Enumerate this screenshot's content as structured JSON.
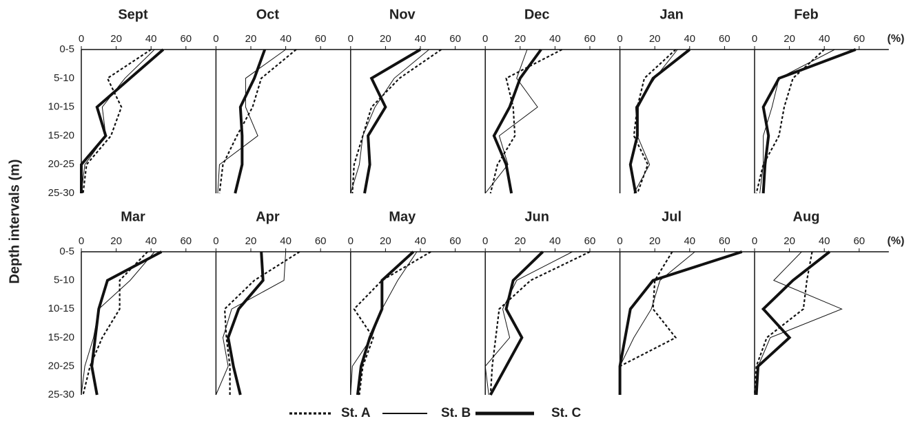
{
  "chart_data": {
    "type": "line",
    "y_label": "Depth intervals (m)",
    "x_unit": "(%)",
    "categories": [
      "0-5",
      "5-10",
      "10-15",
      "15-20",
      "20-25",
      "25-30"
    ],
    "xlim": [
      0,
      77
    ],
    "xticks": [
      0,
      20,
      40,
      60
    ],
    "series": [
      {
        "name": "St. A",
        "color": "#111111",
        "width": 2.2,
        "dash": "4 3"
      },
      {
        "name": "St. B",
        "color": "#111111",
        "width": 1,
        "dash": "none"
      },
      {
        "name": "St. C",
        "color": "#111111",
        "width": 4,
        "dash": "none"
      }
    ],
    "panels": [
      {
        "title": "Sept",
        "values": [
          [
            40,
            15,
            23,
            17,
            3,
            1
          ],
          [
            42,
            25,
            12,
            14,
            2,
            0
          ],
          [
            47,
            28,
            9,
            14,
            0,
            0
          ]
        ]
      },
      {
        "title": "Oct",
        "values": [
          [
            46,
            26,
            21,
            12,
            4,
            2
          ],
          [
            40,
            17,
            17,
            24,
            2,
            1
          ],
          [
            28,
            22,
            14,
            15,
            15,
            11
          ]
        ]
      },
      {
        "title": "Nov",
        "values": [
          [
            52,
            28,
            12,
            7,
            2,
            1
          ],
          [
            45,
            25,
            14,
            7,
            5,
            0
          ],
          [
            40,
            12,
            20,
            10,
            11,
            8
          ]
        ]
      },
      {
        "title": "Dec",
        "values": [
          [
            44,
            12,
            16,
            17,
            7,
            3
          ],
          [
            24,
            18,
            30,
            8,
            13,
            0
          ],
          [
            32,
            20,
            14,
            5,
            12,
            15
          ]
        ]
      },
      {
        "title": "Jan",
        "values": [
          [
            32,
            14,
            10,
            8,
            16,
            10
          ],
          [
            33,
            20,
            9,
            10,
            17,
            8
          ],
          [
            40,
            19,
            10,
            10,
            6,
            9
          ]
        ]
      },
      {
        "title": "Feb",
        "values": [
          [
            40,
            22,
            17,
            14,
            5,
            1
          ],
          [
            46,
            14,
            10,
            5,
            5,
            3
          ],
          [
            58,
            14,
            5,
            8,
            6,
            5
          ]
        ]
      },
      {
        "title": "Mar",
        "values": [
          [
            38,
            22,
            22,
            12,
            5,
            1
          ],
          [
            42,
            28,
            10,
            7,
            2,
            0
          ],
          [
            46,
            15,
            10,
            8,
            6,
            9
          ]
        ]
      },
      {
        "title": "Apr",
        "values": [
          [
            48,
            22,
            5,
            6,
            8,
            8
          ],
          [
            40,
            39,
            9,
            4,
            7,
            0
          ],
          [
            26,
            27,
            13,
            7,
            10,
            14
          ]
        ]
      },
      {
        "title": "May",
        "values": [
          [
            46,
            18,
            2,
            13,
            7,
            5
          ],
          [
            38,
            27,
            18,
            12,
            1,
            0
          ],
          [
            36,
            18,
            18,
            11,
            6,
            4
          ]
        ]
      },
      {
        "title": "Jun",
        "values": [
          [
            60,
            26,
            8,
            6,
            4,
            3
          ],
          [
            50,
            18,
            10,
            14,
            0,
            2
          ],
          [
            33,
            16,
            12,
            21,
            12,
            3
          ]
        ]
      },
      {
        "title": "Jul",
        "values": [
          [
            30,
            20,
            19,
            32,
            0,
            0
          ],
          [
            43,
            23,
            18,
            8,
            0,
            0
          ],
          [
            70,
            19,
            6,
            3,
            0,
            0
          ]
        ]
      },
      {
        "title": "Aug",
        "values": [
          [
            33,
            30,
            28,
            7,
            1,
            0
          ],
          [
            27,
            11,
            50,
            9,
            2,
            1
          ],
          [
            43,
            22,
            5,
            20,
            2,
            1
          ]
        ]
      }
    ]
  }
}
